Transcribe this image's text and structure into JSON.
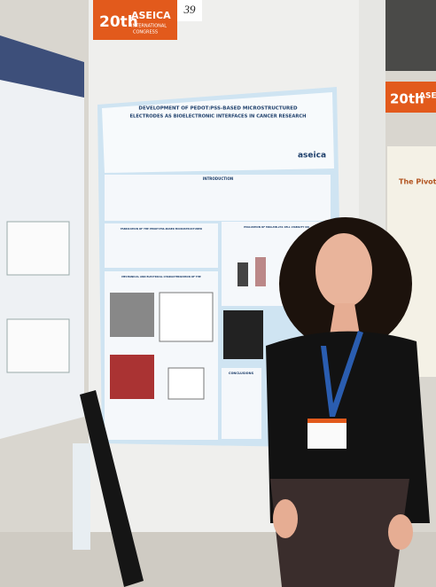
{
  "banner": {
    "ordinal": "20th",
    "name": "ASEICA",
    "subtitle": [
      "INTERNATIONAL",
      "CONGRESS"
    ],
    "board_number": "39"
  },
  "poster": {
    "title": [
      "DEVELOPMENT OF PEDOT:PSS-BASED MICROSTRUCTURED",
      "ELECTRODES AS BIOELECTRONIC INTERFACES IN CANCER RESEARCH"
    ],
    "logo": "aseica",
    "sections": [
      "INTRODUCTION",
      "FABRICATION OF THE PEDOT:PSS-BASED MICROSTRUCTURED",
      "EVALUATION OF MDA-MB-231 CELL VIABILITY ON",
      "MECHANICAL AND ELECTRICAL CHARACTERIZATION OF THE",
      "CONCLUSIONS"
    ]
  },
  "right_banner": {
    "ordinal": "20th",
    "name": "ASEICA"
  },
  "right_poster": {
    "heading": "The Pivotal Ro"
  }
}
